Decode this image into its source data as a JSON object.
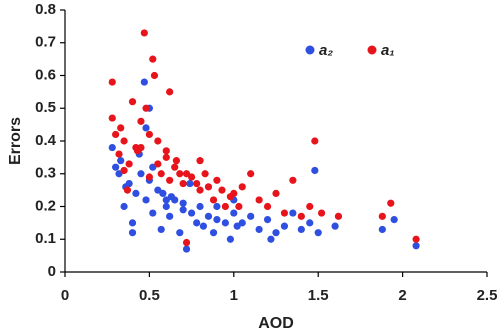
{
  "chart_data": {
    "type": "scatter",
    "x_label": "AOD",
    "y_label": "Errors",
    "xlim": [
      0,
      2.5
    ],
    "xticks": [
      0,
      0.5,
      1,
      1.5,
      2,
      2.5
    ],
    "ylim": [
      0,
      0.8
    ],
    "yticks": [
      0,
      0.1,
      0.2,
      0.3,
      0.4,
      0.5,
      0.6,
      0.7,
      0.8
    ],
    "grid": false,
    "legend": "top-right",
    "series": [
      {
        "name": "a₂",
        "color": "#2f4fe0",
        "x": [
          0.28,
          0.3,
          0.32,
          0.35,
          0.38,
          0.4,
          0.42,
          0.45,
          0.47,
          0.48,
          0.5,
          0.52,
          0.55,
          0.57,
          0.6,
          0.62,
          0.65,
          0.68,
          0.7,
          0.72,
          0.75,
          0.78,
          0.8,
          0.82,
          0.85,
          0.88,
          0.9,
          0.95,
          0.98,
          1.0,
          1.02,
          1.05,
          1.1,
          1.15,
          1.2,
          1.22,
          1.25,
          1.3,
          1.35,
          1.4,
          1.45,
          1.48,
          1.5,
          1.6,
          1.88,
          1.95,
          2.08,
          0.33,
          0.44,
          0.5,
          0.58,
          0.63,
          0.7,
          0.74,
          0.36,
          0.52,
          0.48,
          0.6,
          0.9,
          1.0,
          0.4
        ],
        "values": [
          0.38,
          0.32,
          0.3,
          0.2,
          0.27,
          0.15,
          0.24,
          0.3,
          0.58,
          0.22,
          0.5,
          0.18,
          0.25,
          0.13,
          0.2,
          0.17,
          0.22,
          0.12,
          0.19,
          0.07,
          0.18,
          0.15,
          0.2,
          0.14,
          0.17,
          0.12,
          0.16,
          0.15,
          0.1,
          0.18,
          0.14,
          0.15,
          0.17,
          0.13,
          0.16,
          0.1,
          0.12,
          0.14,
          0.18,
          0.13,
          0.15,
          0.31,
          0.12,
          0.14,
          0.13,
          0.16,
          0.08,
          0.34,
          0.36,
          0.28,
          0.24,
          0.23,
          0.21,
          0.27,
          0.26,
          0.32,
          0.44,
          0.22,
          0.2,
          0.22,
          0.12
        ]
      },
      {
        "name": "a₁",
        "color": "#e8141c",
        "x": [
          0.28,
          0.3,
          0.32,
          0.35,
          0.37,
          0.4,
          0.42,
          0.45,
          0.47,
          0.5,
          0.52,
          0.53,
          0.55,
          0.57,
          0.6,
          0.62,
          0.65,
          0.68,
          0.7,
          0.72,
          0.75,
          0.78,
          0.8,
          0.83,
          0.85,
          0.88,
          0.9,
          0.93,
          0.95,
          0.98,
          1.0,
          1.03,
          1.05,
          1.1,
          1.15,
          1.2,
          1.25,
          1.3,
          1.35,
          1.4,
          1.45,
          1.48,
          1.52,
          1.62,
          1.88,
          1.93,
          2.08,
          0.28,
          0.33,
          0.38,
          0.43,
          0.48,
          0.55,
          0.6,
          0.66,
          0.72,
          0.8,
          0.5,
          0.45,
          0.35,
          0.62
        ],
        "values": [
          0.58,
          0.42,
          0.36,
          0.4,
          0.25,
          0.52,
          0.38,
          0.46,
          0.73,
          0.42,
          0.65,
          0.6,
          0.33,
          0.3,
          0.35,
          0.28,
          0.32,
          0.3,
          0.27,
          0.09,
          0.29,
          0.27,
          0.25,
          0.3,
          0.26,
          0.22,
          0.28,
          0.25,
          0.2,
          0.23,
          0.24,
          0.2,
          0.26,
          0.3,
          0.22,
          0.2,
          0.24,
          0.18,
          0.28,
          0.17,
          0.2,
          0.4,
          0.18,
          0.17,
          0.17,
          0.21,
          0.1,
          0.47,
          0.44,
          0.33,
          0.37,
          0.5,
          0.4,
          0.37,
          0.34,
          0.3,
          0.34,
          0.29,
          0.38,
          0.31,
          0.55
        ]
      }
    ]
  }
}
